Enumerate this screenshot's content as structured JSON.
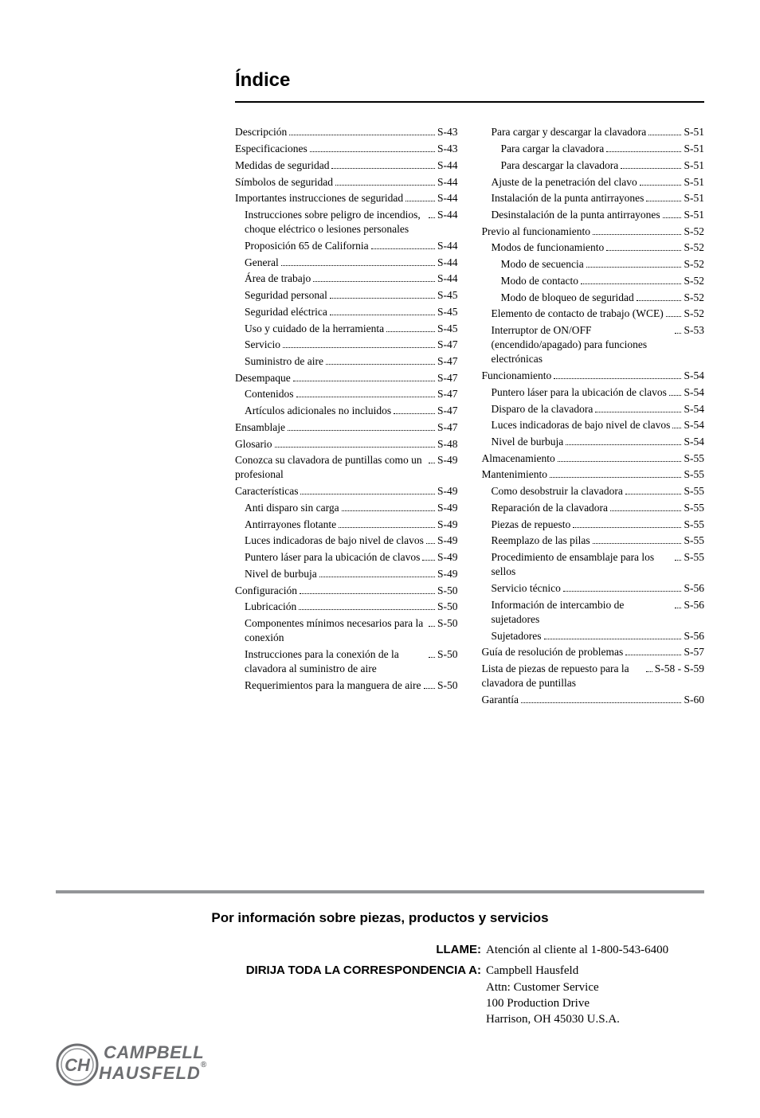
{
  "title": "Índice",
  "toc": [
    {
      "label": "Descripción",
      "page": "S-43",
      "level": 0
    },
    {
      "label": "Especificaciones",
      "page": "S-43",
      "level": 0
    },
    {
      "label": "Medidas de seguridad",
      "page": "S-44",
      "level": 0
    },
    {
      "label": "Símbolos de seguridad",
      "page": "S-44",
      "level": 0
    },
    {
      "label": "Importantes instrucciones de seguridad",
      "page": "S-44",
      "level": 0
    },
    {
      "label": "Instrucciones sobre peligro de incendios, choque eléctrico o lesiones personales",
      "page": "S-44",
      "level": 1
    },
    {
      "label": "Proposición 65 de California",
      "page": "S-44",
      "level": 1
    },
    {
      "label": "General",
      "page": "S-44",
      "level": 1
    },
    {
      "label": "Área de trabajo",
      "page": "S-44",
      "level": 1
    },
    {
      "label": "Seguridad personal",
      "page": "S-45",
      "level": 1
    },
    {
      "label": "Seguridad eléctrica",
      "page": "S-45",
      "level": 1
    },
    {
      "label": "Uso y cuidado de la herramienta",
      "page": "S-45",
      "level": 1
    },
    {
      "label": "Servicio",
      "page": "S-47",
      "level": 1
    },
    {
      "label": "Suministro de aire",
      "page": "S-47",
      "level": 1
    },
    {
      "label": "Desempaque",
      "page": "S-47",
      "level": 0
    },
    {
      "label": "Contenidos",
      "page": "S-47",
      "level": 1
    },
    {
      "label": "Artículos adicionales no incluidos",
      "page": "S-47",
      "level": 1
    },
    {
      "label": "Ensamblaje",
      "page": "S-47",
      "level": 0
    },
    {
      "label": "Glosario",
      "page": "S-48",
      "level": 0
    },
    {
      "label": "Conozca su clavadora de puntillas como un profesional",
      "page": "S-49",
      "level": 0
    },
    {
      "label": "Características",
      "page": "S-49",
      "level": 0
    },
    {
      "label": "Anti disparo sin carga",
      "page": "S-49",
      "level": 1
    },
    {
      "label": "Antirrayones flotante",
      "page": "S-49",
      "level": 1
    },
    {
      "label": "Luces indicadoras de bajo nivel de clavos",
      "page": "S-49",
      "level": 1
    },
    {
      "label": "Puntero láser para la ubicación de clavos",
      "page": "S-49",
      "level": 1
    },
    {
      "label": "Nivel de burbuja",
      "page": "S-49",
      "level": 1
    },
    {
      "label": "Configuración",
      "page": "S-50",
      "level": 0
    },
    {
      "label": "Lubricación",
      "page": "S-50",
      "level": 1
    },
    {
      "label": "Componentes mínimos necesarios para la conexión",
      "page": "S-50",
      "level": 1
    },
    {
      "label": "Instrucciones para la conexión de la clavadora al suministro de aire",
      "page": "S-50",
      "level": 1
    },
    {
      "label": "Requerimientos para la manguera de aire",
      "page": "S-50",
      "level": 1
    },
    {
      "label": "Para cargar y descargar la clavadora",
      "page": "S-51",
      "level": 1
    },
    {
      "label": "Para cargar la clavadora",
      "page": "S-51",
      "level": 2
    },
    {
      "label": "Para descargar la clavadora",
      "page": "S-51",
      "level": 2
    },
    {
      "label": "Ajuste de la penetración del clavo",
      "page": " S-51",
      "level": 1
    },
    {
      "label": "Instalación de la punta antirrayones",
      "page": "S-51",
      "level": 1
    },
    {
      "label": "Desinstalación de la punta antirrayones",
      "page": "S-51",
      "level": 1
    },
    {
      "label": "Previo al funcionamiento",
      "page": "S-52",
      "level": 0
    },
    {
      "label": "Modos de funcionamiento",
      "page": "S-52",
      "level": 1
    },
    {
      "label": "Modo de secuencia",
      "page": "S-52",
      "level": 2
    },
    {
      "label": "Modo de contacto",
      "page": "S-52",
      "level": 2
    },
    {
      "label": "Modo de bloqueo de seguridad",
      "page": "S-52",
      "level": 2
    },
    {
      "label": "Elemento de contacto de trabajo (WCE)",
      "page": "S-52",
      "level": 1
    },
    {
      "label": "Interruptor de ON/OFF (encendido/apagado) para funciones electrónicas",
      "page": "S-53",
      "level": 1
    },
    {
      "label": "Funcionamiento",
      "page": "S-54",
      "level": 0
    },
    {
      "label": "Puntero láser para la ubicación de clavos",
      "page": "S-54",
      "level": 1
    },
    {
      "label": "Disparo de la clavadora",
      "page": "S-54",
      "level": 1
    },
    {
      "label": "Luces indicadoras de bajo nivel de clavos",
      "page": "S-54",
      "level": 1
    },
    {
      "label": "Nivel de burbuja",
      "page": "S-54",
      "level": 1
    },
    {
      "label": "Almacenamiento",
      "page": "S-55",
      "level": 0
    },
    {
      "label": "Mantenimiento",
      "page": "S-55",
      "level": 0
    },
    {
      "label": "Como desobstruir la clavadora",
      "page": "S-55",
      "level": 1
    },
    {
      "label": "Reparación de la clavadora",
      "page": "S-55",
      "level": 1
    },
    {
      "label": "Piezas de repuesto",
      "page": "S-55",
      "level": 1
    },
    {
      "label": "Reemplazo de las pilas",
      "page": "S-55",
      "level": 1
    },
    {
      "label": "Procedimiento de ensamblaje para los sellos",
      "page": "S-55",
      "level": 1
    },
    {
      "label": "Servicio técnico",
      "page": "S-56",
      "level": 1
    },
    {
      "label": "Información de intercambio de sujetadores",
      "page": "S-56",
      "level": 1
    },
    {
      "label": "Sujetadores",
      "page": "S-56",
      "level": 1
    },
    {
      "label": "Guía de resolución de problemas",
      "page": "S-57",
      "level": 0
    },
    {
      "label": "Lista de piezas de repuesto para la clavadora de puntillas",
      "page": "S-58 - S-59",
      "level": 0
    },
    {
      "label": "Garantía",
      "page": "S-60",
      "level": 0
    }
  ],
  "info_heading": "Por información sobre piezas, productos y servicios",
  "contact": {
    "call_label": "LLAME:",
    "call_value": "Atención al cliente al 1-800-543-6400",
    "mail_label": "DIRIJA TODA LA CORRESPONDENCIA A:",
    "mail_lines": [
      "Campbell Hausfeld",
      "Attn: Customer Service",
      "100 Production Drive",
      "Harrison, OH   45030  U.S.A."
    ]
  },
  "logo": {
    "line1": "CAMPBELL",
    "line2": "HAUSFELD",
    "reg": "®",
    "badge_letters": "CH",
    "badge_fill": "#939598",
    "badge_stroke": "#6d6e71"
  },
  "colors": {
    "rule": "#000000",
    "divider": "#939598",
    "text": "#000000",
    "logo_text": "#6d6e71"
  }
}
